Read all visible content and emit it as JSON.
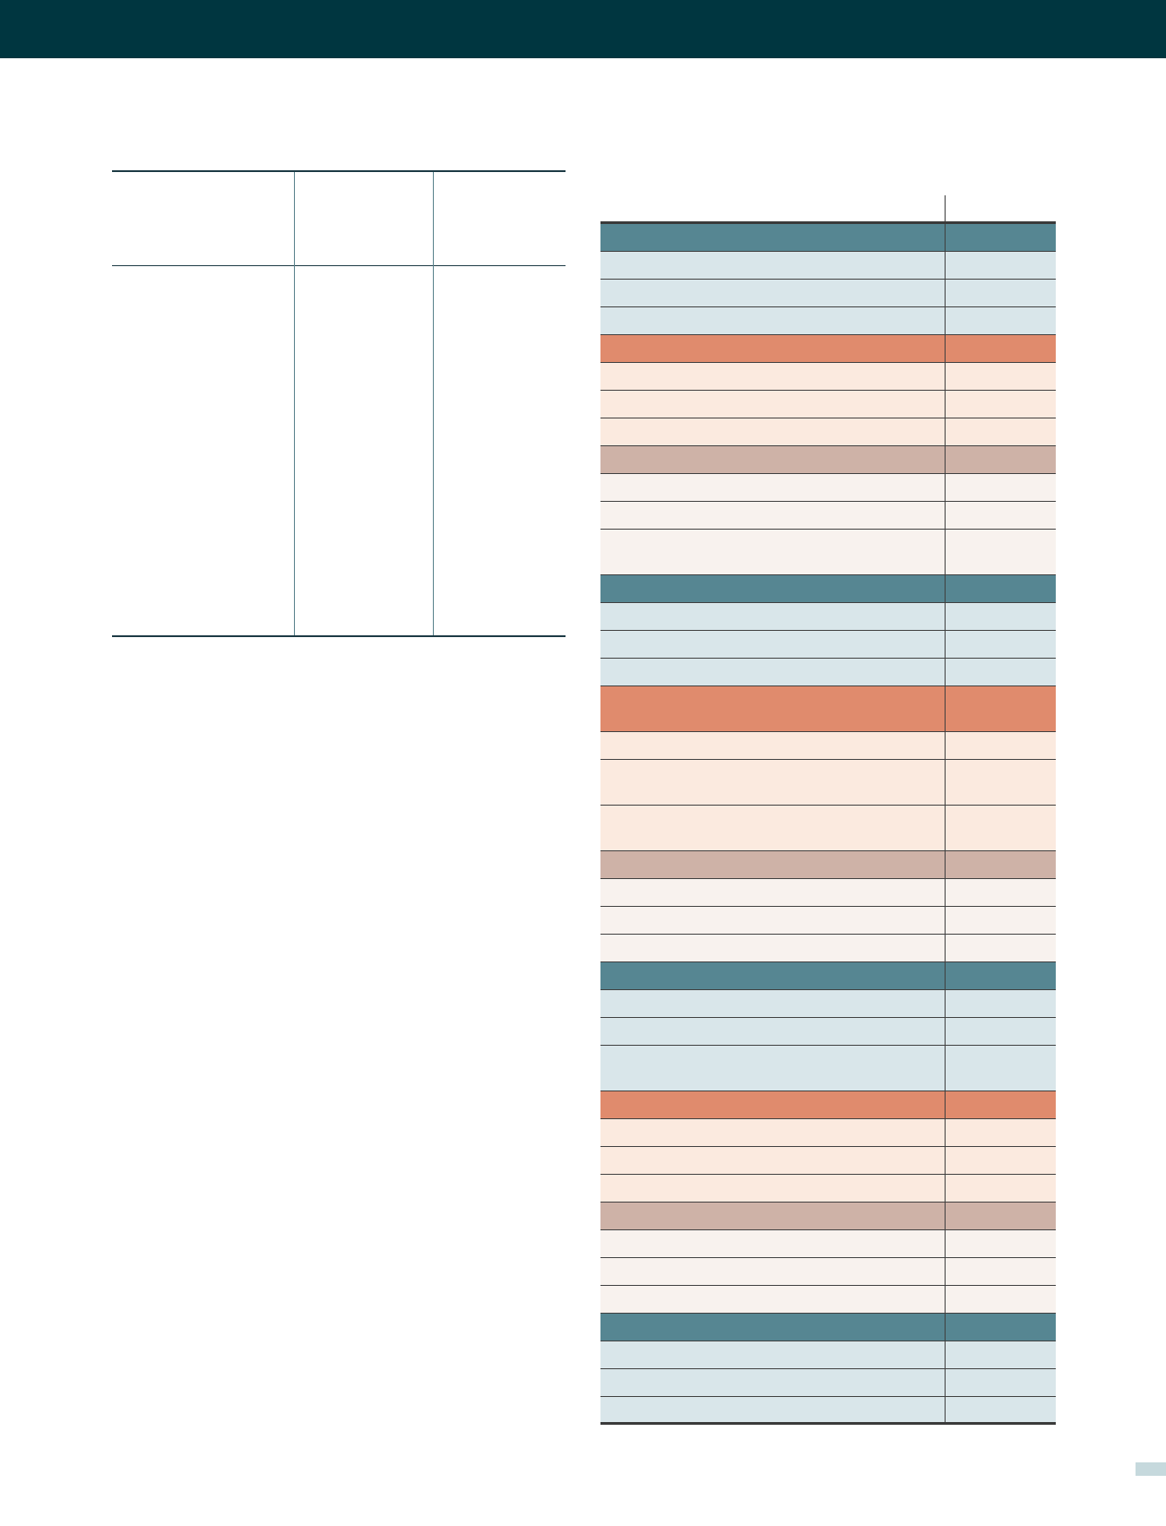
{
  "colors": {
    "top_bar": "#003640",
    "header_teal": "#568692",
    "light_teal": "#d9e6ea",
    "header_orange": "#e08b6d",
    "light_orange": "#fbeadf",
    "header_taupe": "#ceb2a7",
    "light_taupe": "#f8f2ee",
    "rule": "#1c3a44",
    "page_tab": "#c6d9dd"
  },
  "left_table": {
    "headers": [
      "",
      "",
      ""
    ],
    "cells": [
      "",
      "",
      ""
    ]
  },
  "right_table": {
    "headers": [
      "",
      ""
    ],
    "rows": [
      {
        "band": "teal-h",
        "tall": false,
        "label": "",
        "value": ""
      },
      {
        "band": "teal",
        "tall": false,
        "label": "",
        "value": ""
      },
      {
        "band": "teal",
        "tall": false,
        "label": "",
        "value": ""
      },
      {
        "band": "teal",
        "tall": false,
        "label": "",
        "value": ""
      },
      {
        "band": "orange-h",
        "tall": false,
        "label": "",
        "value": ""
      },
      {
        "band": "orange",
        "tall": false,
        "label": "",
        "value": ""
      },
      {
        "band": "orange",
        "tall": false,
        "label": "",
        "value": ""
      },
      {
        "band": "orange",
        "tall": false,
        "label": "",
        "value": ""
      },
      {
        "band": "taupe-h",
        "tall": false,
        "label": "",
        "value": ""
      },
      {
        "band": "taupe",
        "tall": false,
        "label": "",
        "value": ""
      },
      {
        "band": "taupe",
        "tall": false,
        "label": "",
        "value": ""
      },
      {
        "band": "taupe",
        "tall": true,
        "label": "",
        "value": ""
      },
      {
        "band": "teal-h",
        "tall": false,
        "label": "",
        "value": ""
      },
      {
        "band": "teal",
        "tall": false,
        "label": "",
        "value": ""
      },
      {
        "band": "teal",
        "tall": false,
        "label": "",
        "value": ""
      },
      {
        "band": "teal",
        "tall": false,
        "label": "",
        "value": ""
      },
      {
        "band": "orange-h",
        "tall": true,
        "label": "",
        "value": ""
      },
      {
        "band": "orange",
        "tall": false,
        "label": "",
        "value": ""
      },
      {
        "band": "orange",
        "tall": true,
        "label": "",
        "value": ""
      },
      {
        "band": "orange",
        "tall": true,
        "label": "",
        "value": ""
      },
      {
        "band": "taupe-h",
        "tall": false,
        "label": "",
        "value": ""
      },
      {
        "band": "taupe",
        "tall": false,
        "label": "",
        "value": ""
      },
      {
        "band": "taupe",
        "tall": false,
        "label": "",
        "value": ""
      },
      {
        "band": "taupe",
        "tall": false,
        "label": "",
        "value": ""
      },
      {
        "band": "teal-h",
        "tall": false,
        "label": "",
        "value": ""
      },
      {
        "band": "teal",
        "tall": false,
        "label": "",
        "value": ""
      },
      {
        "band": "teal",
        "tall": false,
        "label": "",
        "value": ""
      },
      {
        "band": "teal",
        "tall": true,
        "label": "",
        "value": ""
      },
      {
        "band": "orange-h",
        "tall": false,
        "label": "",
        "value": ""
      },
      {
        "band": "orange",
        "tall": false,
        "label": "",
        "value": ""
      },
      {
        "band": "orange",
        "tall": false,
        "label": "",
        "value": ""
      },
      {
        "band": "orange",
        "tall": false,
        "label": "",
        "value": ""
      },
      {
        "band": "taupe-h",
        "tall": false,
        "label": "",
        "value": ""
      },
      {
        "band": "taupe",
        "tall": false,
        "label": "",
        "value": ""
      },
      {
        "band": "taupe",
        "tall": false,
        "label": "",
        "value": ""
      },
      {
        "band": "taupe",
        "tall": false,
        "label": "",
        "value": ""
      },
      {
        "band": "teal-h",
        "tall": false,
        "label": "",
        "value": ""
      },
      {
        "band": "teal",
        "tall": false,
        "label": "",
        "value": ""
      },
      {
        "band": "teal",
        "tall": false,
        "label": "",
        "value": ""
      },
      {
        "band": "teal",
        "tall": false,
        "label": "",
        "value": ""
      }
    ]
  }
}
